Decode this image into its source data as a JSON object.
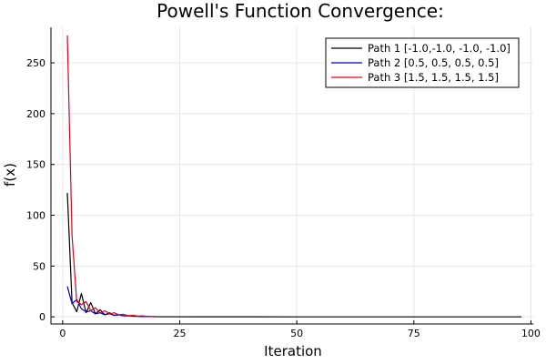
{
  "chart_data": {
    "type": "line",
    "title": "Powell's Function Convergence:",
    "xlabel": "Iteration",
    "ylabel": "f(x)",
    "xlim": [
      -2.5,
      100.5
    ],
    "ylim": [
      -7,
      285
    ],
    "xticks": [
      0,
      25,
      50,
      75,
      100
    ],
    "yticks": [
      0,
      50,
      100,
      150,
      200,
      250
    ],
    "grid": true,
    "legend_position": "top-right",
    "series": [
      {
        "name": "Path 1 [-1.0,-1.0, -1.0, -1.0]",
        "color": "#000000",
        "x": [
          1,
          2,
          3,
          4,
          5,
          6,
          7,
          8,
          9,
          10,
          11,
          12,
          13,
          14,
          15,
          16,
          17,
          18,
          19,
          20,
          30,
          40,
          50,
          60,
          70,
          80,
          90,
          98
        ],
        "y": [
          122,
          14,
          5,
          23,
          4,
          14,
          3,
          7,
          2,
          4,
          1.5,
          2,
          1,
          1.2,
          0.6,
          0.6,
          0.3,
          0.3,
          0.2,
          0.1,
          0.05,
          0.02,
          0.01,
          0.01,
          0.005,
          0.003,
          0.002,
          0.001
        ]
      },
      {
        "name": "Path 2 [0.5, 0.5, 0.5, 0.5]",
        "color": "#0000c8",
        "x": [
          1,
          2,
          3,
          4,
          5,
          6,
          7,
          8,
          9,
          10,
          11,
          12,
          13,
          14,
          15,
          16,
          17,
          18,
          19,
          20
        ],
        "y": [
          30,
          13,
          17,
          8,
          5,
          6,
          3,
          4,
          2,
          3,
          1.5,
          2,
          1,
          1.2,
          0.6,
          0.6,
          0.3,
          0.3,
          0.2,
          0.1
        ]
      },
      {
        "name": "Path 3 [1.5, 1.5, 1.5, 1.5]",
        "color": "#e0001b",
        "x": [
          1,
          2,
          3,
          4,
          5,
          6,
          7,
          8,
          9,
          10,
          11,
          12,
          13,
          14,
          15,
          16,
          17,
          18,
          19,
          20
        ],
        "y": [
          277,
          80,
          15,
          12,
          15,
          6,
          9,
          4,
          6,
          3,
          4,
          2,
          2.5,
          1,
          1.5,
          0.8,
          1,
          0.5,
          0.4,
          0.3
        ]
      }
    ]
  }
}
